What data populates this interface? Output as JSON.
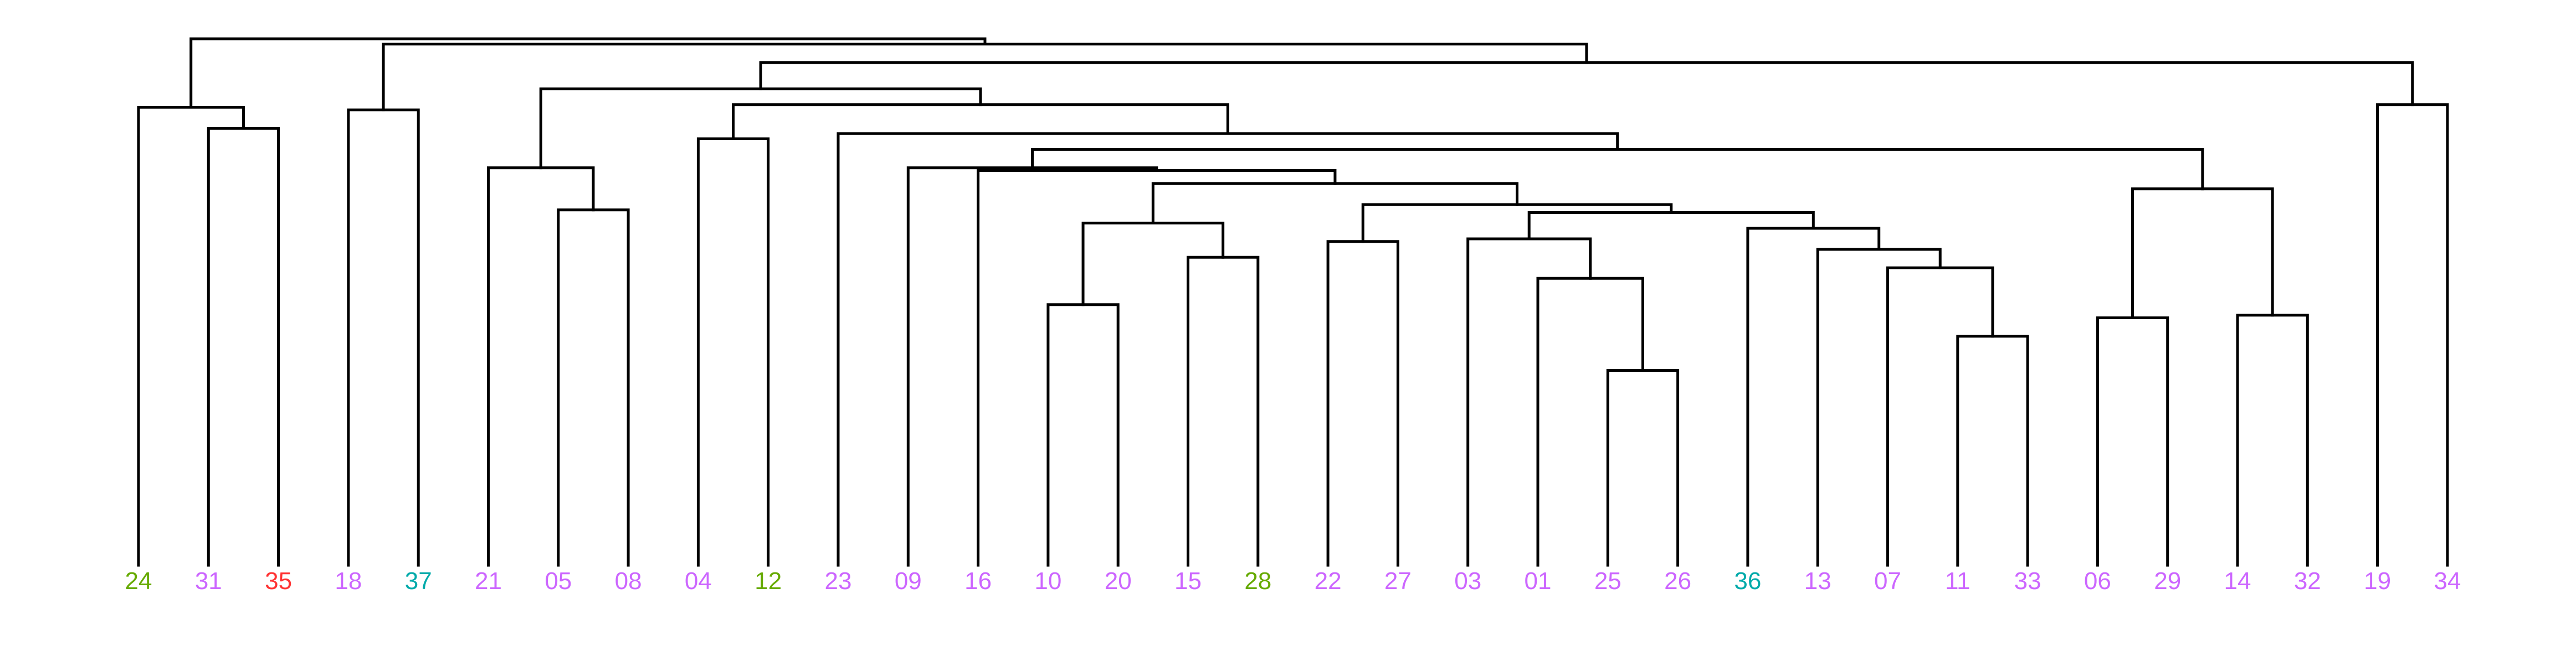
{
  "chart_data": {
    "type": "dendrogram",
    "title": "",
    "colors": {
      "branch": "#000000",
      "groups": {
        "magenta": "#CC66FF",
        "green": "#66AA00",
        "red": "#FF3333",
        "cyan": "#00AAAA"
      }
    },
    "leaves": [
      {
        "label": "24",
        "color": "#66AA00"
      },
      {
        "label": "31",
        "color": "#CC66FF"
      },
      {
        "label": "35",
        "color": "#FF3333"
      },
      {
        "label": "18",
        "color": "#CC66FF"
      },
      {
        "label": "37",
        "color": "#00AAAA"
      },
      {
        "label": "21",
        "color": "#CC66FF"
      },
      {
        "label": "05",
        "color": "#CC66FF"
      },
      {
        "label": "08",
        "color": "#CC66FF"
      },
      {
        "label": "04",
        "color": "#CC66FF"
      },
      {
        "label": "12",
        "color": "#66AA00"
      },
      {
        "label": "23",
        "color": "#CC66FF"
      },
      {
        "label": "09",
        "color": "#CC66FF"
      },
      {
        "label": "16",
        "color": "#CC66FF"
      },
      {
        "label": "10",
        "color": "#CC66FF"
      },
      {
        "label": "20",
        "color": "#CC66FF"
      },
      {
        "label": "15",
        "color": "#CC66FF"
      },
      {
        "label": "28",
        "color": "#66AA00"
      },
      {
        "label": "22",
        "color": "#CC66FF"
      },
      {
        "label": "27",
        "color": "#CC66FF"
      },
      {
        "label": "03",
        "color": "#CC66FF"
      },
      {
        "label": "01",
        "color": "#CC66FF"
      },
      {
        "label": "25",
        "color": "#CC66FF"
      },
      {
        "label": "26",
        "color": "#CC66FF"
      },
      {
        "label": "36",
        "color": "#00AAAA"
      },
      {
        "label": "13",
        "color": "#CC66FF"
      },
      {
        "label": "07",
        "color": "#CC66FF"
      },
      {
        "label": "11",
        "color": "#CC66FF"
      },
      {
        "label": "33",
        "color": "#CC66FF"
      },
      {
        "label": "06",
        "color": "#CC66FF"
      },
      {
        "label": "29",
        "color": "#CC66FF"
      },
      {
        "label": "14",
        "color": "#CC66FF"
      },
      {
        "label": "32",
        "color": "#CC66FF"
      },
      {
        "label": "19",
        "color": "#CC66FF"
      },
      {
        "label": "34",
        "color": "#CC66FF"
      }
    ],
    "merges": [
      {
        "id": "m_25_26",
        "children": [
          "25",
          "26"
        ],
        "height": 0.37
      },
      {
        "id": "m_11_33",
        "children": [
          "11",
          "33"
        ],
        "height": 0.435
      },
      {
        "id": "m_06_29",
        "children": [
          "06",
          "29"
        ],
        "height": 0.47
      },
      {
        "id": "m_14_32",
        "children": [
          "14",
          "32"
        ],
        "height": 0.475
      },
      {
        "id": "m_10_20",
        "children": [
          "10",
          "20"
        ],
        "height": 0.495
      },
      {
        "id": "m_01_m_25_26",
        "children": [
          "01",
          "m_25_26"
        ],
        "height": 0.545
      },
      {
        "id": "m_07_m_11_33",
        "children": [
          "07",
          "m_11_33"
        ],
        "height": 0.565
      },
      {
        "id": "m_15_28",
        "children": [
          "15",
          "28"
        ],
        "height": 0.585
      },
      {
        "id": "m_13_m_07_11_33",
        "children": [
          "13",
          "m_07_m_11_33"
        ],
        "height": 0.6
      },
      {
        "id": "m_22_27",
        "children": [
          "22",
          "27"
        ],
        "height": 0.615
      },
      {
        "id": "m_03_01_25_26",
        "children": [
          "03",
          "m_01_m_25_26"
        ],
        "height": 0.62
      },
      {
        "id": "m_36_group",
        "children": [
          "36",
          "m_13_m_07_11_33"
        ],
        "height": 0.64
      },
      {
        "id": "m_10_20_15_28",
        "children": [
          "m_10_20",
          "m_15_28"
        ],
        "height": 0.65
      },
      {
        "id": "m_03_group_36_group",
        "children": [
          "m_03_01_25_26",
          "m_36_group"
        ],
        "height": 0.67
      },
      {
        "id": "m_05_08",
        "children": [
          "05",
          "08"
        ],
        "height": 0.675
      },
      {
        "id": "m_22_27_03_36",
        "children": [
          "m_22_27",
          "m_03_group_36_group"
        ],
        "height": 0.685
      },
      {
        "id": "m_06_29_14_32",
        "children": [
          "m_06_29",
          "m_14_32"
        ],
        "height": 0.715
      },
      {
        "id": "m_mid_block",
        "children": [
          "m_10_20_15_28",
          "m_22_27_03_36"
        ],
        "height": 0.725
      },
      {
        "id": "m_16_mid",
        "children": [
          "16",
          "m_mid_block"
        ],
        "height": 0.75
      },
      {
        "id": "m_21_05_08",
        "children": [
          "21",
          "m_05_08"
        ],
        "height": 0.755
      },
      {
        "id": "m_09_16_mid",
        "children": [
          "09",
          "m_16_mid"
        ],
        "height": 0.755
      },
      {
        "id": "m_09_block_06_block",
        "children": [
          "m_09_16_mid",
          "m_06_29_14_32"
        ],
        "height": 0.79
      },
      {
        "id": "m_31_35",
        "children": [
          "31",
          "35"
        ],
        "height": 0.83
      },
      {
        "id": "m_04_12",
        "children": [
          "04",
          "12"
        ],
        "height": 0.81
      },
      {
        "id": "m_23_block",
        "children": [
          "23",
          "m_09_block_06_block"
        ],
        "height": 0.82
      },
      {
        "id": "m_18_37",
        "children": [
          "18",
          "37"
        ],
        "height": 0.865
      },
      {
        "id": "m_24_31_35",
        "children": [
          "24",
          "m_31_35"
        ],
        "height": 0.87
      },
      {
        "id": "m_19_34",
        "children": [
          "19",
          "34"
        ],
        "height": 0.875
      },
      {
        "id": "m_04_12_23_block",
        "children": [
          "m_04_12",
          "m_23_block"
        ],
        "height": 0.875
      },
      {
        "id": "m_21_block_04_block",
        "children": [
          "m_21_05_08",
          "m_04_12_23_block"
        ],
        "height": 0.905
      },
      {
        "id": "m_inner_19_34",
        "children": [
          "m_21_block_04_block",
          "m_19_34"
        ],
        "height": 0.955
      },
      {
        "id": "m_18_37_inner",
        "children": [
          "m_18_37",
          "m_inner_19_34"
        ],
        "height": 0.99
      },
      {
        "id": "m_root",
        "children": [
          "m_24_31_35",
          "m_18_37_inner"
        ],
        "height": 1.0
      }
    ]
  }
}
